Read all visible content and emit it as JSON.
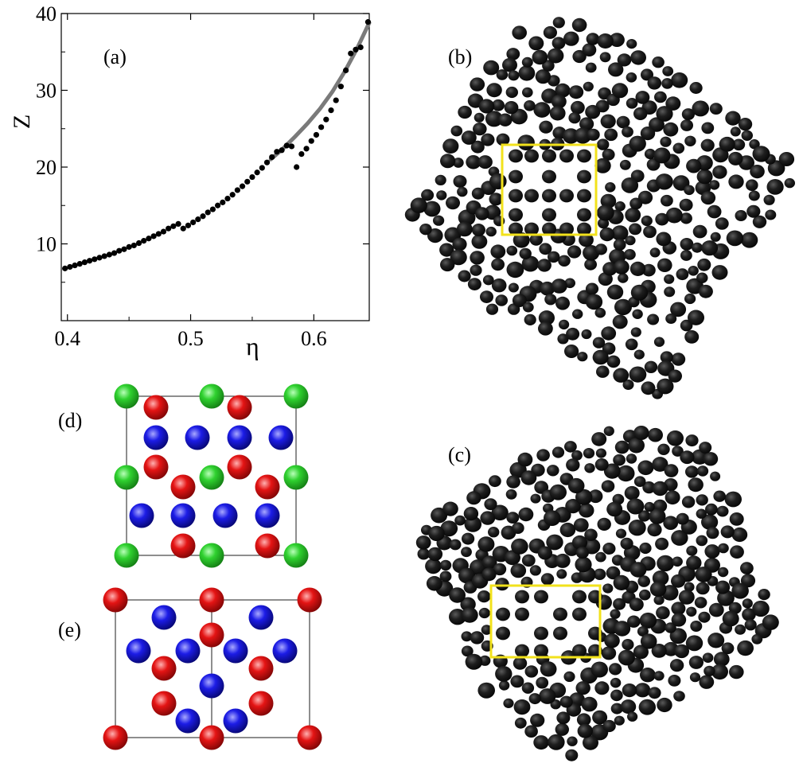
{
  "panels": {
    "a": "(a)",
    "b": "(b)",
    "c": "(c)",
    "d": "(d)",
    "e": "(e)"
  },
  "colors": {
    "points": "#000000",
    "fit_curve": "#7a7a7a",
    "highlight_box": "#f2e21c",
    "atom_green": "#22c422",
    "atom_red": "#e01010",
    "atom_blue": "#1a1ae0",
    "cluster_atom": "#1a1a1a"
  },
  "chart_data": {
    "type": "scatter",
    "title": "",
    "xlabel": "η",
    "ylabel": "Z",
    "xlim": [
      0.395,
      0.645
    ],
    "ylim": [
      0,
      40
    ],
    "xticks": [
      0.4,
      0.5,
      0.6
    ],
    "yticks": [
      10,
      20,
      30,
      40
    ],
    "series": [
      {
        "kind": "points",
        "x": [
          0.398,
          0.402,
          0.406,
          0.41,
          0.414,
          0.418,
          0.422,
          0.426,
          0.43,
          0.434,
          0.438,
          0.442,
          0.446,
          0.45,
          0.454,
          0.458,
          0.462,
          0.466,
          0.47,
          0.474,
          0.478,
          0.482,
          0.486,
          0.49,
          0.494,
          0.498,
          0.502,
          0.506,
          0.51,
          0.514,
          0.518,
          0.522,
          0.526,
          0.53,
          0.534,
          0.538,
          0.542,
          0.546,
          0.55,
          0.554,
          0.558,
          0.562,
          0.566,
          0.57,
          0.574,
          0.578,
          0.582,
          0.586,
          0.59,
          0.594,
          0.598,
          0.602,
          0.606,
          0.61,
          0.614,
          0.618,
          0.622,
          0.626,
          0.63,
          0.634,
          0.638,
          0.644
        ],
        "y": [
          6.8,
          7.0,
          7.2,
          7.4,
          7.6,
          7.8,
          8.0,
          8.2,
          8.4,
          8.6,
          8.8,
          9.1,
          9.3,
          9.6,
          9.8,
          10.1,
          10.4,
          10.7,
          11.0,
          11.3,
          11.6,
          12.0,
          12.3,
          12.6,
          12.0,
          12.4,
          12.8,
          13.2,
          13.6,
          14.1,
          14.5,
          15.0,
          15.4,
          15.9,
          16.4,
          17.0,
          17.5,
          18.1,
          18.7,
          19.3,
          19.9,
          20.6,
          21.3,
          22.0,
          22.2,
          22.8,
          22.7,
          20.0,
          21.7,
          22.4,
          23.4,
          24.2,
          25.2,
          26.2,
          27.4,
          28.7,
          30.5,
          32.6,
          34.8,
          35.3,
          35.6,
          38.9
        ]
      },
      {
        "kind": "curve",
        "x": [
          0.565,
          0.575,
          0.585,
          0.595,
          0.605,
          0.615,
          0.625,
          0.635,
          0.645
        ],
        "y": [
          21.0,
          22.4,
          24.0,
          25.7,
          27.6,
          29.8,
          32.4,
          35.4,
          38.8
        ]
      }
    ]
  }
}
